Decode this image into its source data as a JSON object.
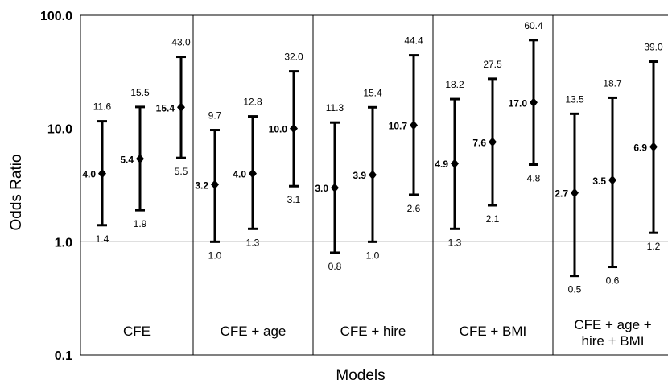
{
  "chart_data": {
    "type": "scatter",
    "xlabel": "Models",
    "ylabel": "Odds Ratio",
    "yscale": "log",
    "ylim": [
      0.1,
      100
    ],
    "y_ticks": [
      "0.1",
      "1.0",
      "10.0",
      "100.0"
    ],
    "reference_line": 1.0,
    "groups": [
      {
        "label": [
          "CFE"
        ],
        "points": [
          {
            "or": 4.0,
            "lo": 1.4,
            "hi": 11.6,
            "or_label": "4.0",
            "lo_label": "1.4",
            "hi_label": "11.6"
          },
          {
            "or": 5.4,
            "lo": 1.9,
            "hi": 15.5,
            "or_label": "5.4",
            "lo_label": "1.9",
            "hi_label": "15.5"
          },
          {
            "or": 15.4,
            "lo": 5.5,
            "hi": 43.0,
            "or_label": "15.4",
            "lo_label": "5.5",
            "hi_label": "43.0"
          }
        ]
      },
      {
        "label": [
          "CFE + age"
        ],
        "points": [
          {
            "or": 3.2,
            "lo": 1.0,
            "hi": 9.7,
            "or_label": "3.2",
            "lo_label": "1.0",
            "hi_label": "9.7"
          },
          {
            "or": 4.0,
            "lo": 1.3,
            "hi": 12.8,
            "or_label": "4.0",
            "lo_label": "1.3",
            "hi_label": "12.8"
          },
          {
            "or": 10.0,
            "lo": 3.1,
            "hi": 32.0,
            "or_label": "10.0",
            "lo_label": "3.1",
            "hi_label": "32.0"
          }
        ]
      },
      {
        "label": [
          "CFE + hire"
        ],
        "points": [
          {
            "or": 3.0,
            "lo": 0.8,
            "hi": 11.3,
            "or_label": "3.0",
            "lo_label": "0.8",
            "hi_label": "11.3"
          },
          {
            "or": 3.9,
            "lo": 1.0,
            "hi": 15.4,
            "or_label": "3.9",
            "lo_label": "1.0",
            "hi_label": "15.4"
          },
          {
            "or": 10.7,
            "lo": 2.6,
            "hi": 44.4,
            "or_label": "10.7",
            "lo_label": "2.6",
            "hi_label": "44.4"
          }
        ]
      },
      {
        "label": [
          "CFE + BMI"
        ],
        "points": [
          {
            "or": 4.9,
            "lo": 1.3,
            "hi": 18.2,
            "or_label": "4.9",
            "lo_label": "1.3",
            "hi_label": "18.2"
          },
          {
            "or": 7.6,
            "lo": 2.1,
            "hi": 27.5,
            "or_label": "7.6",
            "lo_label": "2.1",
            "hi_label": "27.5"
          },
          {
            "or": 17.0,
            "lo": 4.8,
            "hi": 60.4,
            "or_label": "17.0",
            "lo_label": "4.8",
            "hi_label": "60.4"
          }
        ]
      },
      {
        "label": [
          "CFE + age +",
          "hire + BMI"
        ],
        "points": [
          {
            "or": 2.7,
            "lo": 0.5,
            "hi": 13.5,
            "or_label": "2.7",
            "lo_label": "0.5",
            "hi_label": "13.5"
          },
          {
            "or": 3.5,
            "lo": 0.6,
            "hi": 18.7,
            "or_label": "3.5",
            "lo_label": "0.6",
            "hi_label": "18.7"
          },
          {
            "or": 6.9,
            "lo": 1.2,
            "hi": 39.0,
            "or_label": "6.9",
            "lo_label": "1.2",
            "hi_label": "39.0"
          }
        ]
      }
    ]
  }
}
